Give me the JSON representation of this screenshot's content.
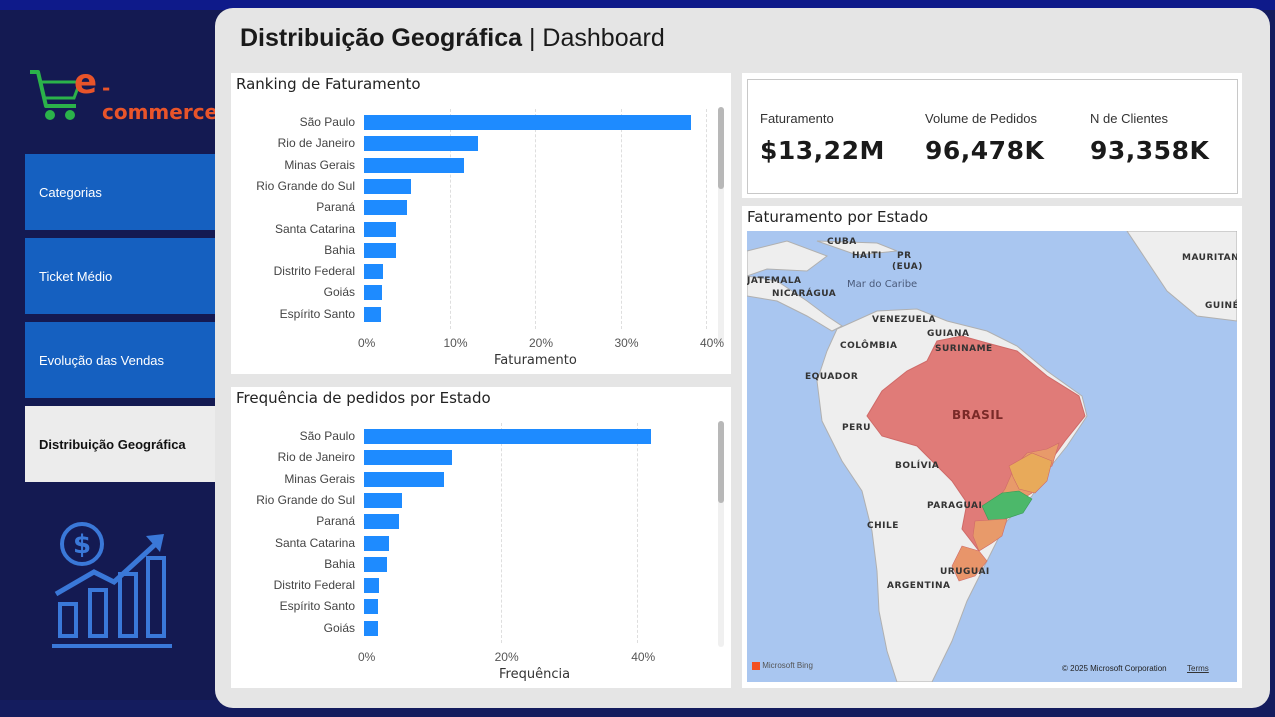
{
  "sidebar": {
    "logo_prefix": "e",
    "logo_text": "-commerce",
    "items": [
      {
        "label": "Categorias"
      },
      {
        "label": "Ticket Médio"
      },
      {
        "label": "Evolução das Vendas"
      },
      {
        "label": "Distribuição Geográfica",
        "active": true
      }
    ]
  },
  "header": {
    "title_bold": "Distribuição Geográfica",
    "title_rest": "| Dashboard"
  },
  "kpis": [
    {
      "label": "Faturamento",
      "value": "$13,22M"
    },
    {
      "label": "Volume de Pedidos",
      "value": "96,478K"
    },
    {
      "label": "N de Clientes",
      "value": "93,358K"
    }
  ],
  "map": {
    "title": "Faturamento por Estado",
    "labels": {
      "cuba": "CUBA",
      "haiti": "HAITI",
      "pr": "PR",
      "eua": "(EUA)",
      "guatemala": "JATEMALA",
      "nicaragua": "NICARÁGUA",
      "caribe": "Mar do Caribe",
      "venezuela": "VENEZUELA",
      "guiana": "GUIANA",
      "colombia": "COLÔMBIA",
      "suriname": "SURINAME",
      "equador": "EQUADOR",
      "brasil": "BRASIL",
      "peru": "PERU",
      "bolivia": "BOLÍVIA",
      "paraguai": "PARAGUAI",
      "chile": "CHILE",
      "uruguai": "URUGUAI",
      "argentina": "ARGENTINA",
      "mauritania": "MAURITAN",
      "guine": "GUINÉ"
    },
    "bing": "Microsoft Bing",
    "copyright": "© 2025 Microsoft Corporation",
    "terms": "Terms"
  },
  "colors": {
    "bar": "#1e8bff",
    "nav": "#1560c0",
    "sidebar": "#141a52",
    "brazil": "#e07b78",
    "sp": "#4cb86a"
  },
  "chart_data": [
    {
      "type": "bar",
      "orientation": "horizontal",
      "title": "Ranking de Faturamento",
      "xlabel": "Faturamento",
      "categories": [
        "São Paulo",
        "Rio de Janeiro",
        "Minas Gerais",
        "Rio Grande do Sul",
        "Paraná",
        "Santa Catarina",
        "Bahia",
        "Distrito Federal",
        "Goiás",
        "Espírito Santo"
      ],
      "values": [
        38.3,
        13.3,
        11.7,
        5.5,
        5.0,
        3.8,
        3.7,
        2.2,
        2.1,
        2.0
      ],
      "xticks": [
        "0%",
        "10%",
        "20%",
        "30%",
        "40%"
      ],
      "xlim": [
        0,
        40
      ],
      "grid": true
    },
    {
      "type": "bar",
      "orientation": "horizontal",
      "title": "Frequência de pedidos por Estado",
      "xlabel": "Frequência",
      "categories": [
        "São Paulo",
        "Rio de Janeiro",
        "Minas Gerais",
        "Rio Grande do Sul",
        "Paraná",
        "Santa Catarina",
        "Bahia",
        "Distrito Federal",
        "Espírito Santo",
        "Goiás"
      ],
      "values": [
        42.0,
        12.9,
        11.7,
        5.5,
        5.1,
        3.6,
        3.4,
        2.2,
        2.0,
        2.0
      ],
      "xticks": [
        "0%",
        "20%",
        "40%"
      ],
      "xlim": [
        0,
        40
      ],
      "grid": true
    }
  ]
}
